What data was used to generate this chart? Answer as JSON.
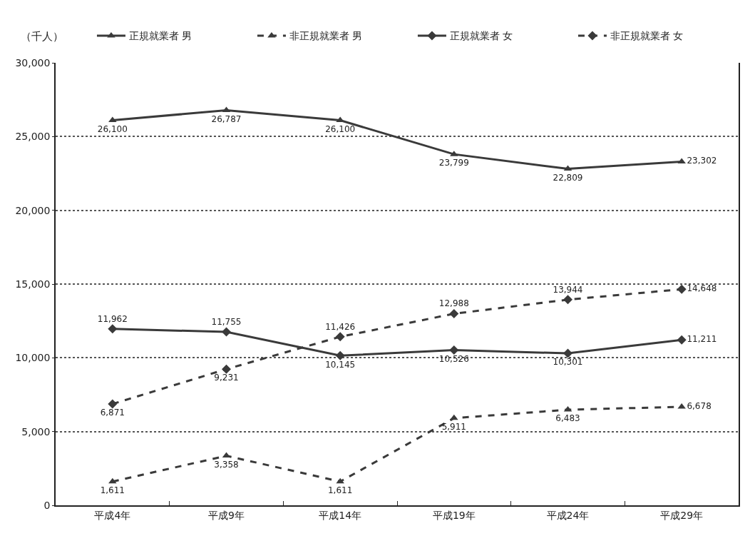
{
  "chart_data": {
    "type": "line",
    "ylabel": "（千人）",
    "categories": [
      "平成4年",
      "平成9年",
      "平成14年",
      "平成19年",
      "平成24年",
      "平成29年"
    ],
    "ylim": [
      0,
      30000
    ],
    "yticks": [
      0,
      {
        "value": 5000,
        "label": "5,000"
      },
      {
        "value": 10000,
        "label": "10,000"
      },
      {
        "value": 15000,
        "label": "15,000"
      },
      {
        "value": 20000,
        "label": "20,000"
      },
      {
        "value": 25000,
        "label": "25,000"
      },
      {
        "value": 30000,
        "label": "30,000"
      }
    ],
    "grid": "y",
    "legend": "top",
    "series": [
      {
        "name": "正規就業者 男",
        "color": "#3a3a3a",
        "marker": "triangle",
        "line_style": "solid",
        "values": [
          26100,
          26787,
          26100,
          23799,
          22809,
          23302
        ],
        "value_labels": [
          "26,100",
          "26,787",
          "26,100",
          "23,799",
          "22,809",
          "23,302"
        ]
      },
      {
        "name": "非正規就業者 男",
        "color": "#3a3a3a",
        "marker": "triangle",
        "line_style": "dashed",
        "values": [
          1611,
          3358,
          1611,
          5911,
          6483,
          6678
        ],
        "value_labels": [
          "1,611",
          "3,358",
          "1,611",
          "5,911",
          "6,483",
          "6,678"
        ]
      },
      {
        "name": "正規就業者 女",
        "color": "#3a3a3a",
        "marker": "diamond",
        "line_style": "solid",
        "values": [
          11962,
          11755,
          10145,
          10526,
          10301,
          11211
        ],
        "value_labels": [
          "11,962",
          "11,755",
          "10,145",
          "10,526",
          "10,301",
          "11,211"
        ]
      },
      {
        "name": "非正規就業者 女",
        "color": "#3a3a3a",
        "marker": "diamond",
        "line_style": "dashed",
        "values": [
          6871,
          9231,
          11426,
          12988,
          13944,
          14648
        ],
        "value_labels": [
          "6,871",
          "9,231",
          "11,426",
          "12,988",
          "13,944",
          "14,648"
        ]
      }
    ]
  }
}
